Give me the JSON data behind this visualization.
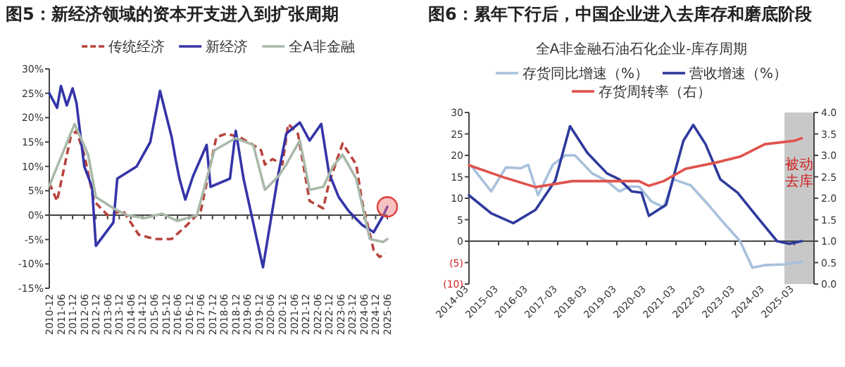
{
  "chart_data": [
    {
      "type": "line",
      "title": "图5：新经济领域的资本开支进入到扩张周期",
      "legend": "top",
      "xlim": [
        "2010-12",
        "2025-06"
      ],
      "xticks": [
        "2010-12",
        "2011-06",
        "2011-12",
        "2012-06",
        "2012-12",
        "2013-06",
        "2013-12",
        "2014-06",
        "2014-12",
        "2015-06",
        "2015-12",
        "2016-06",
        "2016-12",
        "2017-06",
        "2017-12",
        "2018-06",
        "2018-12",
        "2019-06",
        "2019-12",
        "2020-06",
        "2020-12",
        "2021-06",
        "2021-12",
        "2022-06",
        "2022-12",
        "2023-06",
        "2023-12",
        "2024-06",
        "2024-12",
        "2025-06"
      ],
      "ylim": [
        -15,
        30
      ],
      "yticks": [
        {
          "value": -15,
          "label": "-15%"
        },
        {
          "value": -10,
          "label": "-10%"
        },
        {
          "value": -5,
          "label": "-5%"
        },
        {
          "value": 0,
          "label": "0%"
        },
        {
          "value": 5,
          "label": "5%"
        },
        {
          "value": 10,
          "label": "10%"
        },
        {
          "value": 15,
          "label": "15%"
        },
        {
          "value": 20,
          "label": "20%"
        },
        {
          "value": 25,
          "label": "25%"
        },
        {
          "value": 30,
          "label": "30%"
        }
      ],
      "series": [
        {
          "name": "传统经济",
          "color": "#b8443c",
          "line_style": "dashed",
          "x": [
            "2010-12",
            "2011-04",
            "2011-11",
            "2012-02",
            "2012-06",
            "2012-11",
            "2013-06",
            "2014-02",
            "2014-10",
            "2015-06",
            "2016-03",
            "2016-11",
            "2017-06",
            "2018-02",
            "2018-07",
            "2019-02",
            "2019-09",
            "2020-01",
            "2020-03",
            "2020-07",
            "2020-12",
            "2021-03",
            "2021-08",
            "2021-12",
            "2022-02",
            "2022-09",
            "2022-12",
            "2023-05",
            "2023-07",
            "2024-02",
            "2024-05",
            "2024-11",
            "2025-02",
            "2025-05"
          ],
          "values": [
            6.6,
            2.9,
            16,
            17.3,
            12.4,
            2.9,
            0,
            0.9,
            -4,
            -4.9,
            -4.9,
            -2,
            0.9,
            16,
            16.7,
            16,
            14.4,
            13.3,
            10.4,
            11.5,
            10.4,
            18.7,
            16.7,
            7.5,
            2.9,
            1.4,
            6.6,
            12.4,
            14.7,
            10.4,
            2.9,
            -7.2,
            -8.6,
            -7.8
          ]
        },
        {
          "name": "新经济",
          "color": "#3434a8",
          "x": [
            "2010-12",
            "2011-04",
            "2011-06",
            "2011-09",
            "2011-12",
            "2012-02",
            "2012-06",
            "2012-10",
            "2012-12",
            "2013-09",
            "2013-11",
            "2014-09",
            "2015-04",
            "2015-09",
            "2016-03",
            "2016-05",
            "2016-07",
            "2016-10",
            "2017-02",
            "2017-09",
            "2017-11",
            "2018-09",
            "2018-12",
            "2019-04",
            "2020-02",
            "2020-10",
            "2021-02",
            "2021-09",
            "2022-02",
            "2022-08",
            "2022-12",
            "2023-05",
            "2023-10",
            "2024-05",
            "2024-11",
            "2025-04",
            "2025-06"
          ],
          "values": [
            25,
            22,
            26.5,
            22.5,
            26,
            23,
            10,
            5.8,
            -6.3,
            -1.5,
            7.5,
            10,
            15,
            25.5,
            16,
            11.5,
            7.5,
            3.2,
            8,
            14.4,
            5.8,
            7.5,
            17.3,
            7.5,
            -10.7,
            8.6,
            16.7,
            19,
            15.3,
            18.7,
            8.6,
            3.7,
            0.9,
            -2,
            -3.5,
            0,
            1.7
          ]
        },
        {
          "name": "全A非金融",
          "color": "#a9b9a9",
          "x": [
            "2010-12",
            "2012-01",
            "2012-08",
            "2012-12",
            "2013-09",
            "2014-04",
            "2015-01",
            "2015-10",
            "2016-06",
            "2017-04",
            "2018-01",
            "2018-12",
            "2019-09",
            "2020-03",
            "2020-10",
            "2021-02",
            "2021-09",
            "2022-02",
            "2022-09",
            "2023-02",
            "2023-07",
            "2024-02",
            "2024-09",
            "2025-04",
            "2025-06"
          ],
          "values": [
            6,
            18.7,
            12.4,
            3.7,
            1.4,
            0,
            -0.6,
            0.3,
            -1.2,
            0,
            13.3,
            15.8,
            14.4,
            5.2,
            8,
            10.4,
            15.3,
            5.2,
            5.8,
            10,
            12.4,
            7.5,
            -4.9,
            -5.5,
            -4.9
          ]
        }
      ]
    },
    {
      "type": "line",
      "title": "图6：累年下行后，中国企业进入去库存和磨底阶段",
      "subtitle": "全A非金融石油石化企业-库存周期",
      "legend": "top",
      "xlim": [
        "2014-03",
        "2025-11"
      ],
      "xticks": [
        "2014-03",
        "2015-03",
        "2016-03",
        "2017-03",
        "2018-03",
        "2019-03",
        "2020-03",
        "2021-03",
        "2022-03",
        "2023-03",
        "2024-03",
        "2025-03"
      ],
      "ylim": [
        -10,
        30
      ],
      "yticks": [
        {
          "value": -10,
          "label": "(10)"
        },
        {
          "value": -5,
          "label": "(5)"
        },
        0,
        5,
        10,
        15,
        20,
        25,
        30
      ],
      "y2lim": [
        0,
        4
      ],
      "y2ticks": [
        {
          "value": 0,
          "label": "0.0"
        },
        0.5,
        {
          "value": 1,
          "label": "1.0"
        },
        1.5,
        {
          "value": 2,
          "label": "2.0"
        },
        2.5,
        {
          "value": 3,
          "label": "3.0"
        },
        3.5,
        {
          "value": 4,
          "label": "4.0"
        }
      ],
      "bands": [
        {
          "axis": "x",
          "from": "2024-11",
          "to": "2025-11",
          "label": "被动去库",
          "color": "#c8c8c8"
        }
      ],
      "series": [
        {
          "name": "存货同比增速（%）",
          "color": "#a8c0dc",
          "x": [
            "2014-04",
            "2014-12",
            "2015-06",
            "2015-12",
            "2016-03",
            "2016-07",
            "2017-01",
            "2017-06",
            "2017-10",
            "2018-05",
            "2018-11",
            "2019-04",
            "2019-08",
            "2019-12",
            "2020-05",
            "2020-10",
            "2021-02",
            "2021-09",
            "2022-05",
            "2022-10",
            "2023-05",
            "2023-10",
            "2024-03",
            "2024-11",
            "2025-06"
          ],
          "values": [
            17.5,
            11.6,
            17.2,
            17,
            17.8,
            10.7,
            17.8,
            20,
            20,
            15.8,
            14,
            11.6,
            12.7,
            12.7,
            9.3,
            7.9,
            14.4,
            13,
            7.9,
            4.5,
            0,
            -6.2,
            -5.6,
            -5.4,
            -4.8
          ]
        },
        {
          "name": "营收增速（%）",
          "color": "#2e3a9c",
          "x": [
            "2014-03",
            "2014-12",
            "2015-09",
            "2016-06",
            "2017-02",
            "2017-08",
            "2018-03",
            "2018-11",
            "2019-04",
            "2019-09",
            "2020-01",
            "2020-04",
            "2020-11",
            "2021-02",
            "2021-06",
            "2021-10",
            "2022-03",
            "2022-09",
            "2023-04",
            "2023-12",
            "2024-08",
            "2025-01",
            "2025-06"
          ],
          "values": [
            10.7,
            6.5,
            4.2,
            7.3,
            14.1,
            26.8,
            20.6,
            15.8,
            14.4,
            11.6,
            11.3,
            5.9,
            8.5,
            15,
            23.4,
            27.1,
            22.6,
            14.4,
            11.3,
            5.6,
            0,
            -0.6,
            0
          ]
        },
        {
          "name": "存货周转率（右）",
          "color": "#e0524c",
          "axis": "y2",
          "x": [
            "2014-03",
            "2015-05",
            "2016-06",
            "2017-09",
            "2018-11",
            "2019-12",
            "2020-04",
            "2020-10",
            "2021-07",
            "2022-07",
            "2023-05",
            "2024-03",
            "2025-03",
            "2025-06"
          ],
          "values": [
            2.77,
            2.49,
            2.26,
            2.4,
            2.4,
            2.4,
            2.29,
            2.4,
            2.69,
            2.83,
            2.97,
            3.26,
            3.34,
            3.4
          ]
        }
      ]
    }
  ]
}
